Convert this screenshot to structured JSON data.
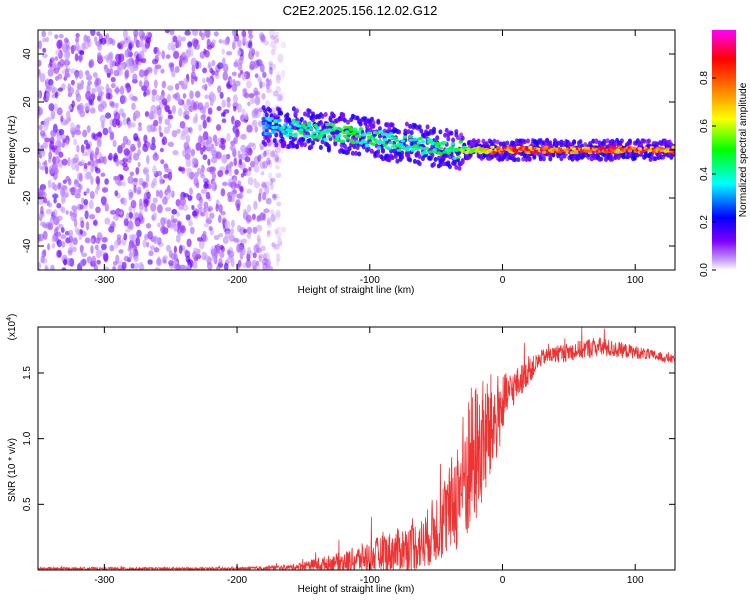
{
  "title": "C2E2.2025.156.12.02.G12",
  "chart_data": [
    {
      "type": "heatmap",
      "xlabel": "Height of straight line (km)",
      "ylabel": "Frequency (Hz)",
      "xlim": [
        -350,
        130
      ],
      "ylim": [
        -50,
        50
      ],
      "xticks": [
        -300,
        -200,
        -100,
        0,
        100
      ],
      "yticks": [
        -40,
        -20,
        0,
        20,
        40
      ],
      "xtick_labels": [
        "-300",
        "-200",
        "-100",
        "0",
        "100"
      ],
      "ytick_labels": [
        "-40",
        "-20",
        "0",
        "20",
        "40"
      ],
      "colorbar": {
        "label": "Normalized spectral amplitude",
        "range": [
          0,
          1
        ],
        "ticks": [
          0.0,
          0.2,
          0.4,
          0.6,
          0.8
        ],
        "tick_labels": [
          "0.0",
          "0.2",
          "0.4",
          "0.6",
          "0.8"
        ],
        "colors": [
          "#ffffff",
          "#8000ff",
          "#0000ff",
          "#00ffff",
          "#00ff00",
          "#ffff00",
          "#ff8000",
          "#ff0000",
          "#ff00ff"
        ]
      },
      "ridge": [
        {
          "x": -180,
          "y": 10,
          "amp": 0.35
        },
        {
          "x": -150,
          "y": 9,
          "amp": 0.45
        },
        {
          "x": -120,
          "y": 7,
          "amp": 0.5
        },
        {
          "x": -90,
          "y": 4,
          "amp": 0.45
        },
        {
          "x": -60,
          "y": 2,
          "amp": 0.45
        },
        {
          "x": -35,
          "y": 0,
          "amp": 0.5
        },
        {
          "x": 0,
          "y": 0,
          "amp": 0.85
        },
        {
          "x": 130,
          "y": 0,
          "amp": 0.85
        }
      ]
    },
    {
      "type": "line",
      "xlabel": "Height of straight line (km)",
      "ylabel": "SNR (10 * v/v)",
      "y_multiplier": "(x10",
      "y_multiplier_exp": "4",
      "y_multiplier_close": ")",
      "xlim": [
        -350,
        130
      ],
      "ylim": [
        0,
        1.85
      ],
      "xticks": [
        -300,
        -200,
        -100,
        0,
        100
      ],
      "yticks": [
        0.5,
        1.0,
        1.5
      ],
      "xtick_labels": [
        "-300",
        "-200",
        "-100",
        "0",
        "100"
      ],
      "ytick_labels": [
        "0.5",
        "1.0",
        "1.5"
      ],
      "series": [
        {
          "color": "#ee3333",
          "envelope": [
            {
              "x": -350,
              "mean": 0.01,
              "noise": 0.01
            },
            {
              "x": -200,
              "mean": 0.01,
              "noise": 0.01
            },
            {
              "x": -160,
              "mean": 0.02,
              "noise": 0.02
            },
            {
              "x": -120,
              "mean": 0.06,
              "noise": 0.08
            },
            {
              "x": -90,
              "mean": 0.12,
              "noise": 0.15
            },
            {
              "x": -60,
              "mean": 0.2,
              "noise": 0.2
            },
            {
              "x": -40,
              "mean": 0.45,
              "noise": 0.35
            },
            {
              "x": -25,
              "mean": 0.8,
              "noise": 0.6
            },
            {
              "x": -10,
              "mean": 1.05,
              "noise": 0.45
            },
            {
              "x": 5,
              "mean": 1.35,
              "noise": 0.15
            },
            {
              "x": 30,
              "mean": 1.62,
              "noise": 0.06
            },
            {
              "x": 70,
              "mean": 1.7,
              "noise": 0.08
            },
            {
              "x": 100,
              "mean": 1.66,
              "noise": 0.05
            },
            {
              "x": 130,
              "mean": 1.6,
              "noise": 0.03
            }
          ]
        }
      ]
    }
  ]
}
